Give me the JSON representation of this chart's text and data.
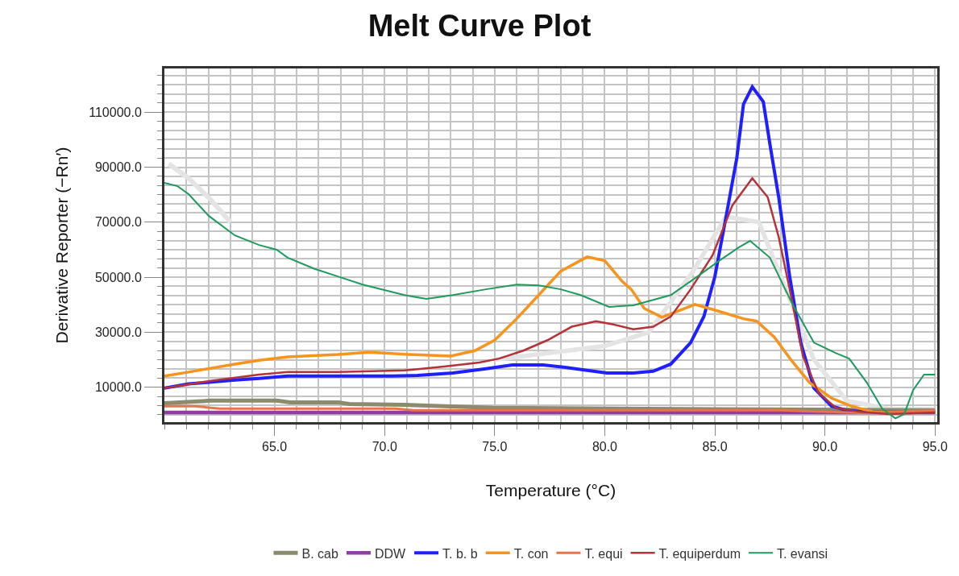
{
  "chart_data": {
    "type": "line",
    "title": "Melt Curve Plot",
    "xlabel": "Temperature (°C)",
    "ylabel": "Derivative Reporter (−Rn′)",
    "xlim": [
      60,
      95.1
    ],
    "ylim": [
      -2700,
      125900
    ],
    "xticks": [
      {
        "value": 65,
        "label": "65.0"
      },
      {
        "value": 70,
        "label": "70.0"
      },
      {
        "value": 75,
        "label": "75.0"
      },
      {
        "value": 80,
        "label": "80.0"
      },
      {
        "value": 85,
        "label": "85.0"
      },
      {
        "value": 90,
        "label": "90.0"
      },
      {
        "value": 95,
        "label": "95.0"
      }
    ],
    "yticks": [
      {
        "value": 10000,
        "label": "10000.0"
      },
      {
        "value": 30000,
        "label": "30000.0"
      },
      {
        "value": 50000,
        "label": "50000.0"
      },
      {
        "value": 70000,
        "label": "70000.0"
      },
      {
        "value": 90000,
        "label": "90000.0"
      },
      {
        "value": 110000,
        "label": "110000.0"
      }
    ],
    "grid": true,
    "legend": "bottom",
    "marker": "none",
    "line_style": "solid",
    "series": [
      {
        "color": "#e4e4e4",
        "x": [
          60.2,
          61.1,
          62.1,
          63.0
        ],
        "values": [
          91200,
          86000,
          78200,
          70000
        ]
      },
      {
        "color": "#e4e4e4",
        "x": [
          75,
          80,
          82,
          84,
          85.5,
          87,
          88,
          89.5,
          91,
          93,
          95
        ],
        "values": [
          20000,
          25000,
          30000,
          52000,
          72000,
          70000,
          50000,
          20000,
          5000,
          2000,
          2000
        ]
      },
      {
        "name": "B. cab",
        "color": "#8b8b6e",
        "x": [
          60.0,
          62.1,
          65.1,
          65.7,
          67.9,
          68.4,
          70.9,
          74.9,
          85.0,
          95.0
        ],
        "values": [
          4200,
          5100,
          5100,
          4500,
          4500,
          3900,
          3600,
          2500,
          2000,
          1600
        ]
      },
      {
        "name": "DDW",
        "color": "#8e3fa0",
        "x": [
          60.0,
          95.0
        ],
        "values": [
          800,
          800
        ]
      },
      {
        "name": "T. b. b",
        "color": "#1f1fff",
        "x": [
          60.0,
          61.1,
          63.2,
          64.3,
          65.6,
          67.9,
          70.3,
          71.5,
          73.1,
          74.6,
          75.8,
          77.2,
          78.2,
          79.2,
          80.1,
          81.3,
          82.2,
          83.0,
          83.9,
          84.5,
          85.0,
          85.5,
          86.0,
          86.3,
          86.7,
          87.2,
          87.5,
          87.9,
          88.4,
          88.9,
          89.5,
          90.3,
          91.0,
          91.9,
          95.0
        ],
        "values": [
          9700,
          11200,
          12600,
          13200,
          14100,
          14100,
          14100,
          14300,
          15200,
          16700,
          18100,
          18100,
          17200,
          16100,
          15200,
          15200,
          15800,
          18400,
          26200,
          35700,
          50200,
          71600,
          93500,
          112900,
          119200,
          113800,
          98400,
          79100,
          50200,
          26200,
          9700,
          3100,
          1600,
          1000,
          1000
        ]
      },
      {
        "name": "T. con",
        "color": "#f7941d",
        "x": [
          60.0,
          61.1,
          63.2,
          64.3,
          65.6,
          67.9,
          69.3,
          71.1,
          73.0,
          74.1,
          75.0,
          76.0,
          77.0,
          78.0,
          79.2,
          80.0,
          80.8,
          81.2,
          81.8,
          82.6,
          84.1,
          85.1,
          86.3,
          86.9,
          87.7,
          88.5,
          89.3,
          90.3,
          91.2,
          92.2,
          95.0
        ],
        "values": [
          14100,
          15500,
          18400,
          19800,
          21000,
          21900,
          22700,
          21900,
          21300,
          23300,
          27100,
          34900,
          43500,
          52200,
          57400,
          56000,
          48400,
          45600,
          38600,
          35400,
          40100,
          37800,
          34900,
          34000,
          28200,
          19500,
          11700,
          6000,
          3100,
          1000,
          1000
        ]
      },
      {
        "name": "T. equi",
        "color": "#e8744a",
        "x": [
          60.0,
          61.4,
          62.5,
          70.5,
          71.3,
          88.0,
          91.9,
          95.0
        ],
        "values": [
          3100,
          3100,
          2200,
          2200,
          1600,
          1600,
          600,
          1600
        ]
      },
      {
        "name": "T. equiperdum",
        "color": "#b5323a",
        "x": [
          60.0,
          62.1,
          64.3,
          65.6,
          67.9,
          70.9,
          72.7,
          74.3,
          75.2,
          76.3,
          77.4,
          78.5,
          79.6,
          80.4,
          81.3,
          82.2,
          83.0,
          83.9,
          84.9,
          85.8,
          86.7,
          87.4,
          87.9,
          88.4,
          89.0,
          89.7,
          90.5,
          91.6,
          92.9,
          95.0
        ],
        "values": [
          9700,
          12300,
          14600,
          15500,
          15500,
          16100,
          17500,
          19000,
          20400,
          23300,
          27100,
          32000,
          34000,
          32800,
          31100,
          32000,
          35700,
          45600,
          58000,
          76200,
          86000,
          79100,
          64600,
          45600,
          21300,
          8000,
          2500,
          1000,
          200,
          800
        ]
      },
      {
        "name": "T. evansi",
        "color": "#1e9a5c",
        "x": [
          60.0,
          60.6,
          61.1,
          62.0,
          63.2,
          64.3,
          65.1,
          65.6,
          66.8,
          67.9,
          69.0,
          70.9,
          71.9,
          73.1,
          74.6,
          76.0,
          77.0,
          78.0,
          78.9,
          80.2,
          81.3,
          83.0,
          84.2,
          85.2,
          86.1,
          86.6,
          87.5,
          88.5,
          89.5,
          90.5,
          91.1,
          91.9,
          92.6,
          93.2,
          93.6,
          94.0,
          94.5,
          95.0
        ],
        "values": [
          84300,
          83100,
          80200,
          72400,
          65200,
          61700,
          60000,
          57100,
          53100,
          50200,
          47300,
          43500,
          42100,
          43500,
          45600,
          47300,
          47000,
          45600,
          43500,
          39200,
          39800,
          43500,
          50200,
          56000,
          60900,
          63200,
          57100,
          40600,
          26200,
          22400,
          20400,
          11700,
          2200,
          -1300,
          200,
          8900,
          14600,
          14600
        ]
      }
    ]
  }
}
